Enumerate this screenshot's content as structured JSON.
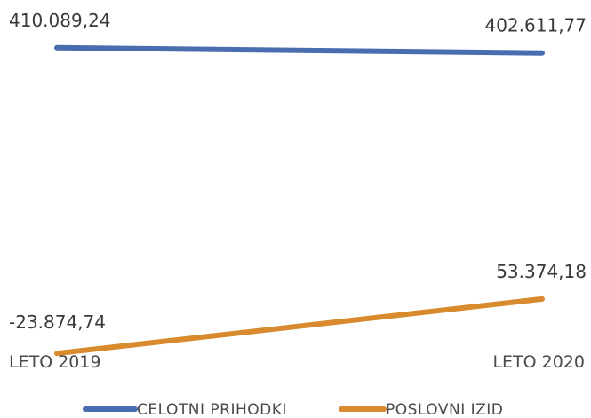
{
  "chart_data": {
    "type": "line",
    "categories": [
      "LETO 2019",
      "LETO 2020"
    ],
    "series": [
      {
        "name": "CELOTNI PRIHODKI",
        "values": [
          410089.24,
          402611.77
        ],
        "labels": [
          "410.089,24",
          "402.611,77"
        ],
        "color": "#4a6db0"
      },
      {
        "name": "POSLOVNI IZID",
        "values": [
          -23874.74,
          53374.18
        ],
        "labels": [
          "-23.874,74",
          "53.374,18"
        ],
        "color": "#d88b2e"
      }
    ],
    "ylim": [
      -40000,
      430000
    ],
    "grid": false,
    "legend": "bottom"
  }
}
